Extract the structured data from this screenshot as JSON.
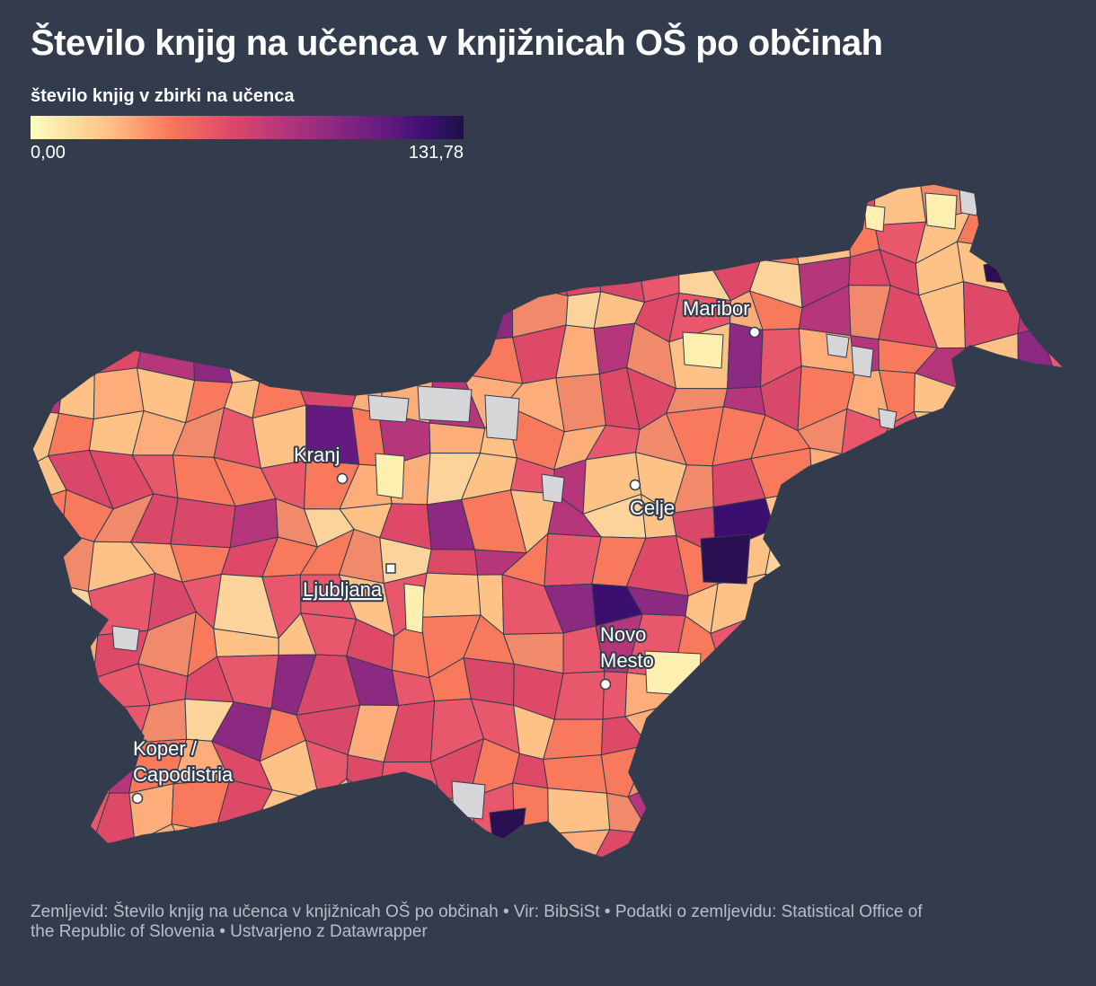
{
  "title": "Število knjig na učenca v knjižnicah OŠ po občinah",
  "legend": {
    "title": "število knjig v zbirki na učenca",
    "min_label": "0,00",
    "max_label": "131,78",
    "min": 0,
    "max": 131.78,
    "no_data_color": "#d6d6d9",
    "color_stops": [
      "#fcfdbf",
      "#fec287",
      "#f9795d",
      "#de4968",
      "#b5367a",
      "#8c2981",
      "#641a80",
      "#3b0f70",
      "#1c1044"
    ]
  },
  "cities": {
    "maribor": "Maribor",
    "kranj": "Kranj",
    "celje": "Celje",
    "ljubljana": "Ljubljana",
    "novo_mesto_1": "Novo",
    "novo_mesto_2": "Mesto",
    "koper_1": "Koper /",
    "koper_2": "Capodistria"
  },
  "footer": {
    "line1": "Zemljevid: Število knjig na učenca v knjižnicah OŠ po občinah • Vir: BibSiSt • Podatki o zemljevidu: Statistical Office of",
    "line2": "the Republic of Slovenia • Ustvarjeno z Datawrapper"
  },
  "colors": {
    "background": "#333c4d",
    "border": "#333c4d"
  }
}
